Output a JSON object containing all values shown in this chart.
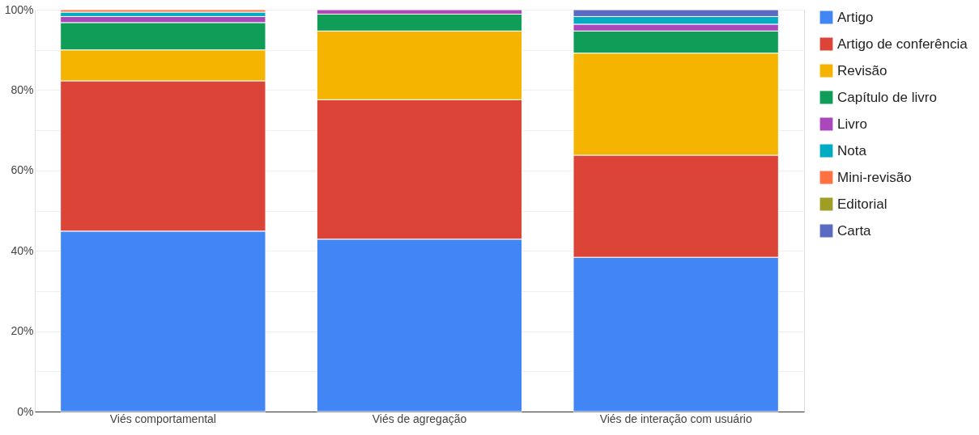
{
  "chart_data": {
    "type": "bar",
    "stacked": true,
    "categories": [
      "Viés comportamental",
      "Viés de agregação",
      "Viés de interação com usuário"
    ],
    "series": [
      {
        "name": "Artigo",
        "color": "#4285f4",
        "values": [
          44.9,
          42.9,
          38.4
        ]
      },
      {
        "name": "Artigo de conferência",
        "color": "#db4437",
        "values": [
          37.4,
          34.7,
          25.4
        ]
      },
      {
        "name": "Revisão",
        "color": "#f4b400",
        "values": [
          7.7,
          17.1,
          25.4
        ]
      },
      {
        "name": "Capítulo de livro",
        "color": "#0f9d58",
        "values": [
          6.8,
          4.2,
          5.5
        ]
      },
      {
        "name": "Livro",
        "color": "#ab47bc",
        "values": [
          1.5,
          1.1,
          1.7
        ]
      },
      {
        "name": "Nota",
        "color": "#00acc1",
        "values": [
          1.1,
          null,
          1.9
        ]
      },
      {
        "name": "Mini-revisão",
        "color": "#ff7043",
        "values": [
          0.6,
          null,
          null
        ]
      },
      {
        "name": "Editorial",
        "color": "#9e9d24",
        "values": [
          null,
          null,
          null
        ]
      },
      {
        "name": "Carta",
        "color": "#5c6bc0",
        "values": [
          null,
          null,
          1.7
        ]
      }
    ],
    "ylim": [
      0,
      100
    ],
    "yticks": [
      {
        "value": 0,
        "label": "0%"
      },
      {
        "value": 10,
        "label": null
      },
      {
        "value": 20,
        "label": "20%"
      },
      {
        "value": 30,
        "label": null
      },
      {
        "value": 40,
        "label": "40%"
      },
      {
        "value": 50,
        "label": null
      },
      {
        "value": 60,
        "label": "60%"
      },
      {
        "value": 70,
        "label": null
      },
      {
        "value": 80,
        "label": "80%"
      },
      {
        "value": 90,
        "label": null
      },
      {
        "value": 100,
        "label": "100%"
      }
    ],
    "grid": "y",
    "legend": "top right"
  }
}
